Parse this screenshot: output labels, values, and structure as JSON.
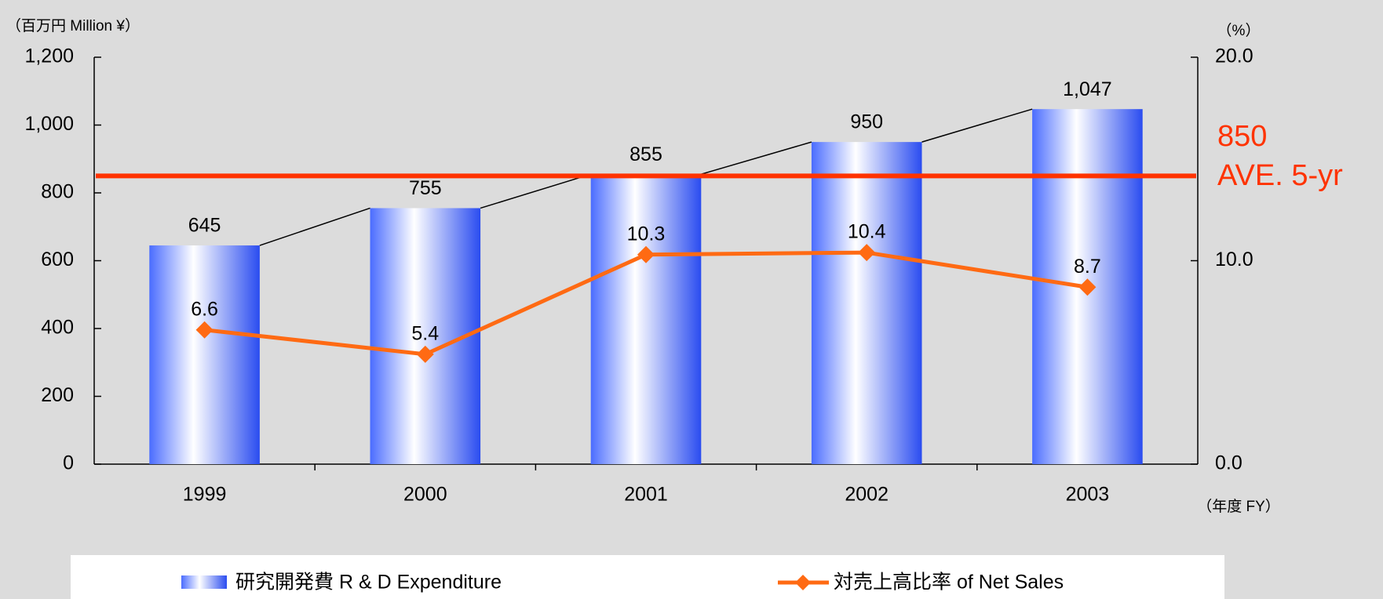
{
  "chart_data": {
    "type": "bar",
    "y_label": "（百万円  Million ¥）",
    "y2_label": "（%）",
    "x_label": "（年度 FY）",
    "categories": [
      "1999",
      "2000",
      "2001",
      "2002",
      "2003"
    ],
    "series": [
      {
        "name": "研究開発費  R & D Expenditure",
        "color": "#3355ee",
        "values": [
          645,
          755,
          855,
          950,
          1047
        ],
        "value_labels": [
          "645",
          "755",
          "855",
          "950",
          "1,047"
        ]
      },
      {
        "name": "対売上高比率  of Net Sales",
        "color": "#ff6a13",
        "axis": "y2",
        "type": "line",
        "values": [
          6.6,
          5.4,
          10.3,
          10.4,
          8.7
        ]
      }
    ],
    "average": {
      "value": 850,
      "label": "AVE. 5-yr",
      "color": "#ff3300"
    },
    "ylim": [
      0,
      1200
    ],
    "yticks": [
      0,
      200,
      400,
      600,
      800,
      {
        "value": 1000,
        "label": "1,000"
      },
      {
        "value": 1200,
        "label": "1,200"
      }
    ],
    "y2lim": [
      0,
      20
    ],
    "y2ticks": [
      {
        "value": 0,
        "label": "0.0"
      },
      {
        "value": 10,
        "label": "10.0"
      },
      {
        "value": 20,
        "label": "20.0"
      }
    ],
    "legend": "bottom"
  }
}
